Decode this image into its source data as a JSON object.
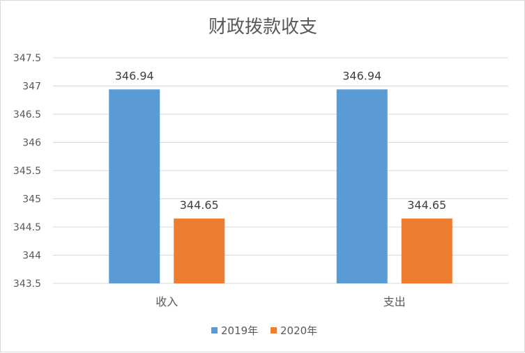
{
  "chart_data": {
    "type": "bar",
    "title": "财政拨款收支",
    "categories": [
      "收入",
      "支出"
    ],
    "series": [
      {
        "name": "2019年",
        "values": [
          346.94,
          346.94
        ],
        "color": "#5b9bd5"
      },
      {
        "name": "2020年",
        "values": [
          344.65,
          344.65
        ],
        "color": "#ed7d31"
      }
    ],
    "ylim": [
      343.5,
      347.5
    ],
    "yticks": [
      "343.5",
      "344",
      "344.5",
      "345",
      "345.5",
      "346",
      "346.5",
      "347",
      "347.5"
    ],
    "grid": true,
    "legend_position": "bottom",
    "xlabel": "",
    "ylabel": ""
  }
}
